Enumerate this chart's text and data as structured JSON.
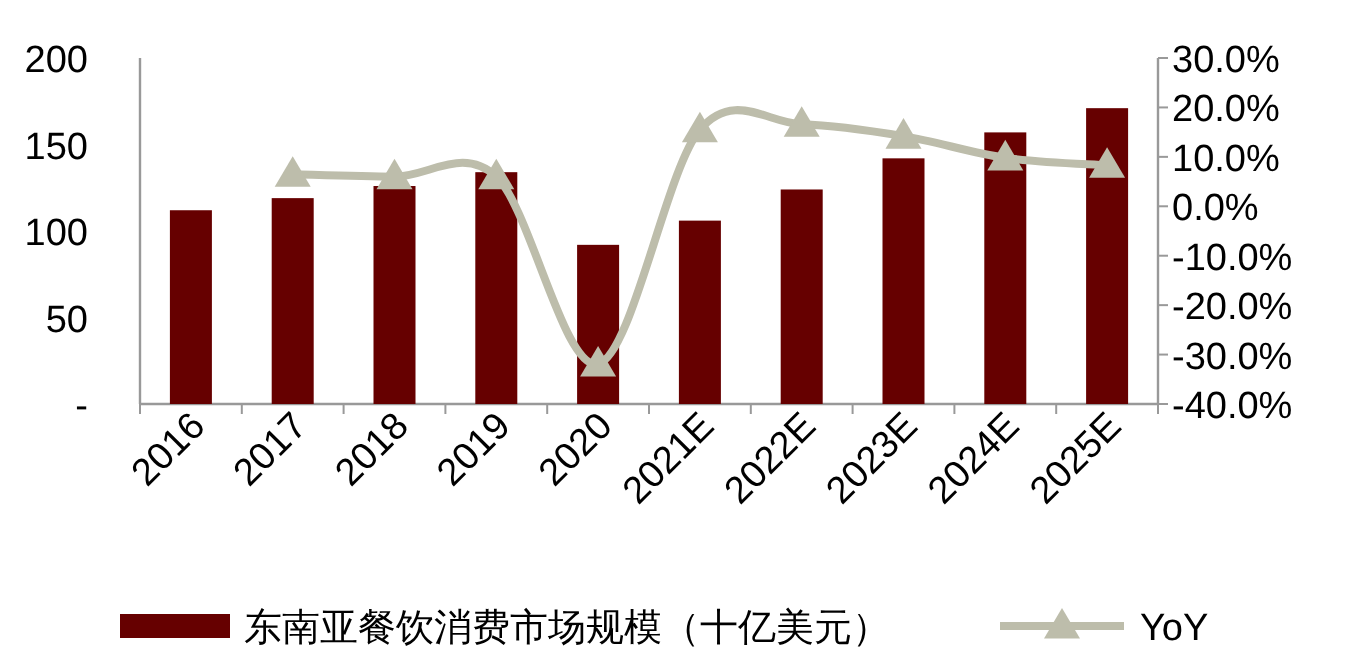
{
  "chart_data": {
    "type": "bar",
    "categories": [
      "2016",
      "2017",
      "2018",
      "2019",
      "2020",
      "2021E",
      "2022E",
      "2023E",
      "2024E",
      "2025E"
    ],
    "series": [
      {
        "name": "东南亚餐饮消费市场规模（十亿美元）",
        "color": "#660000",
        "values": [
          112,
          119,
          126,
          134,
          92,
          106,
          124,
          142,
          157,
          171
        ]
      },
      {
        "name": "YoY",
        "type": "line",
        "axis": "y2",
        "color": "#bdbdab",
        "marker": "triangle",
        "line_style": "solid",
        "values": [
          null,
          6.5,
          6.0,
          6.0,
          -31.9,
          15.5,
          16.6,
          14.2,
          9.8,
          8.3
        ]
      }
    ],
    "ylim": [
      0,
      200
    ],
    "yticks": [
      {
        "value": 0,
        "label": "-"
      },
      50,
      100,
      150,
      200
    ],
    "y2lim": [
      -40,
      30
    ],
    "y2ticks": [
      {
        "value": 30,
        "label": "30.0%"
      },
      {
        "value": 20,
        "label": "20.0%"
      },
      {
        "value": 10,
        "label": "10.0%"
      },
      {
        "value": 0,
        "label": "0.0%"
      },
      {
        "value": -10,
        "label": "-10.0%"
      },
      {
        "value": -20,
        "label": "-20.0%"
      },
      {
        "value": -30,
        "label": "-30.0%"
      },
      {
        "value": -40,
        "label": "-40.0%"
      }
    ],
    "legend": "bottom",
    "grid": false
  }
}
